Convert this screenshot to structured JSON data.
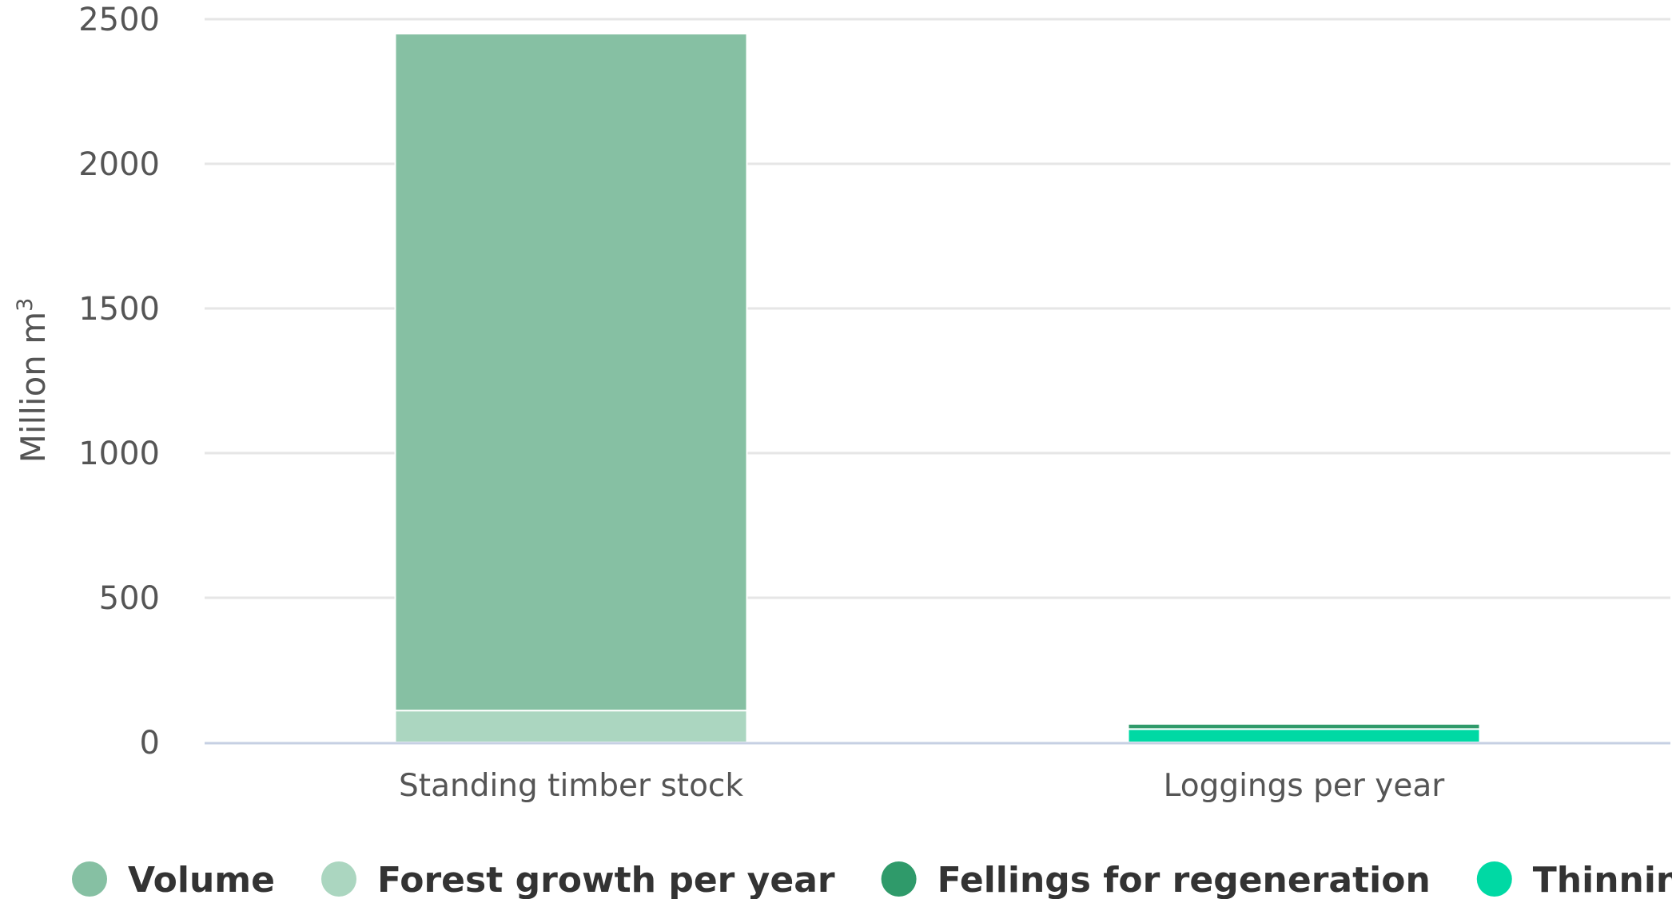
{
  "chart_data": {
    "type": "bar",
    "stacked": true,
    "categories": [
      "Standing timber stock",
      "Loggings per year"
    ],
    "series": [
      {
        "name": "Volume",
        "color": "#86c0a3",
        "values": [
          2340,
          null
        ]
      },
      {
        "name": "Forest growth per year",
        "color": "#abd6c0",
        "values": [
          110,
          null
        ]
      },
      {
        "name": "Fellings for regeneration",
        "color": "#2f9a6a",
        "values": [
          null,
          18
        ]
      },
      {
        "name": "Thinnings",
        "color": "#00d9a4",
        "values": [
          null,
          46
        ]
      }
    ],
    "y_axis": {
      "title": "Million m",
      "title_sup": "3",
      "min": 0,
      "max": 2500,
      "ticks": [
        0,
        500,
        1000,
        1500,
        2000,
        2500
      ],
      "tick_labels": [
        "0",
        "500",
        "1000",
        "1500",
        "2000",
        "2500"
      ]
    },
    "grid": true,
    "legend_position": "bottom"
  }
}
